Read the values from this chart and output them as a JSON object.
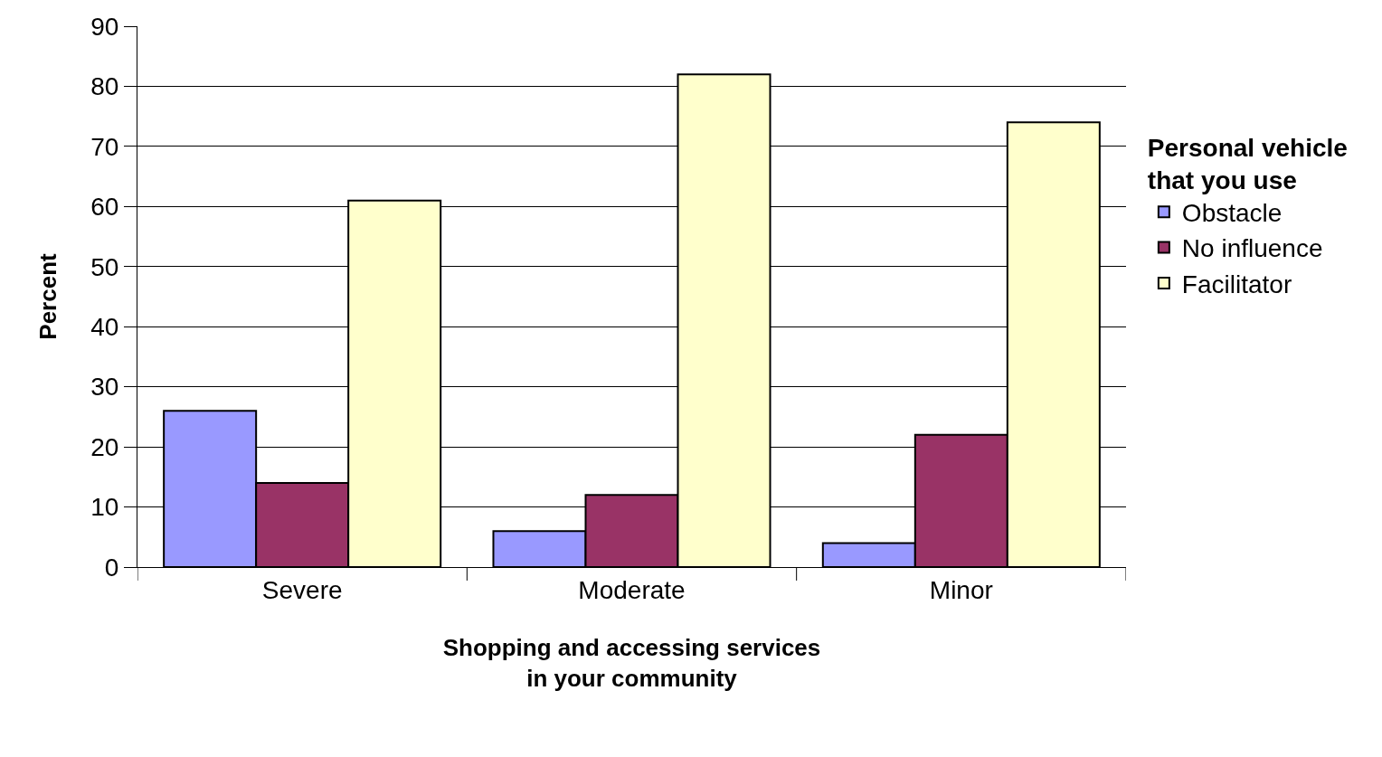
{
  "chart_data": {
    "type": "bar",
    "categories": [
      "Severe",
      "Moderate",
      "Minor"
    ],
    "xlabel": "Shopping and accessing services in your community",
    "ylabel": "Percent",
    "legend_title": "Personal vehicle that you use",
    "series": [
      {
        "name": "Obstacle",
        "color": "#9999ff",
        "values": [
          26,
          6,
          4
        ]
      },
      {
        "name": "No influence",
        "color": "#993366",
        "values": [
          14,
          12,
          22
        ]
      },
      {
        "name": "Facilitator",
        "color": "#ffffcc",
        "values": [
          61,
          82,
          74
        ]
      }
    ],
    "ylim": [
      0,
      90
    ],
    "yticks": [
      0,
      10,
      20,
      30,
      40,
      50,
      60,
      70,
      80,
      90
    ],
    "grid": "y",
    "legend": "right"
  }
}
